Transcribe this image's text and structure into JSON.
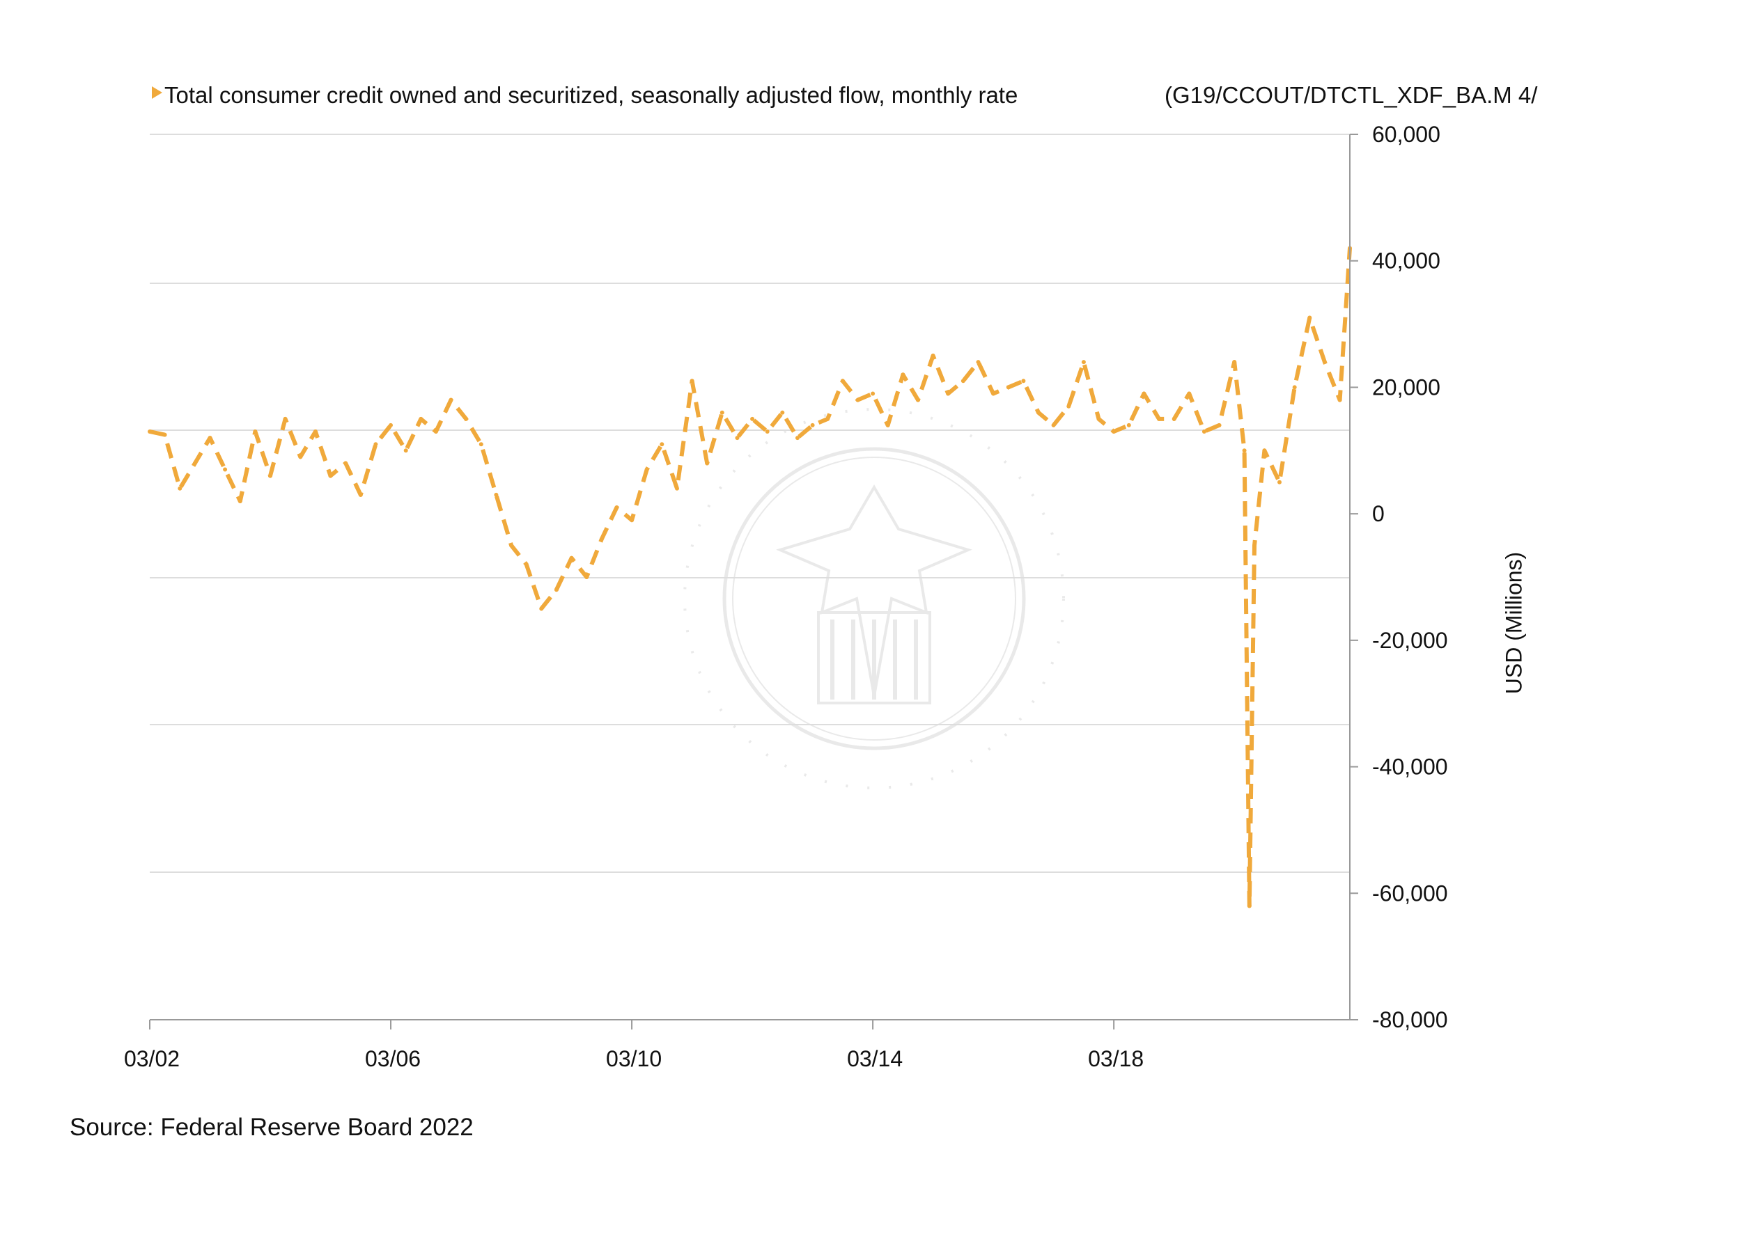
{
  "chart_data": {
    "type": "line",
    "legend": {
      "label": "Total consumer credit owned and securitized, seasonally adjusted flow, monthly rate",
      "marker_color": "#f0a93b",
      "placement": "top-left"
    },
    "series_code": "(G19/CCOUT/DTCTL_XDF_BA.M 4/",
    "ylabel": "USD (Millions)",
    "ylim": [
      -80000,
      60000
    ],
    "y_ticks": [
      "60,000",
      "40,000",
      "20,000",
      "0",
      "-20,000",
      "-40,000",
      "-60,000",
      "-80,000"
    ],
    "y_tick_values": [
      60000,
      40000,
      20000,
      0,
      -20000,
      -40000,
      -60000,
      -80000
    ],
    "x_ticks": [
      "03/02",
      "03/06",
      "03/10",
      "03/14",
      "03/18"
    ],
    "x_tick_values": [
      2002.0,
      2006.0,
      2010.0,
      2014.0,
      2018.0
    ],
    "xlim": [
      2002.0,
      2021.917
    ],
    "grid": true,
    "line_style": "dashed",
    "series": [
      {
        "color": "#f0a93b",
        "x": [
          2002.0,
          2002.25,
          2002.5,
          2002.75,
          2003.0,
          2003.25,
          2003.5,
          2003.75,
          2004.0,
          2004.25,
          2004.5,
          2004.75,
          2005.0,
          2005.25,
          2005.5,
          2005.75,
          2006.0,
          2006.25,
          2006.5,
          2006.75,
          2007.0,
          2007.25,
          2007.5,
          2007.75,
          2008.0,
          2008.25,
          2008.5,
          2008.75,
          2009.0,
          2009.25,
          2009.5,
          2009.75,
          2010.0,
          2010.25,
          2010.5,
          2010.75,
          2011.0,
          2011.25,
          2011.5,
          2011.75,
          2012.0,
          2012.25,
          2012.5,
          2012.75,
          2013.0,
          2013.25,
          2013.5,
          2013.75,
          2014.0,
          2014.25,
          2014.5,
          2014.75,
          2015.0,
          2015.25,
          2015.5,
          2015.75,
          2016.0,
          2016.25,
          2016.5,
          2016.75,
          2017.0,
          2017.25,
          2017.5,
          2017.75,
          2018.0,
          2018.25,
          2018.5,
          2018.75,
          2019.0,
          2019.25,
          2019.5,
          2019.75,
          2020.0,
          2020.167,
          2020.25,
          2020.333,
          2020.5,
          2020.75,
          2021.0,
          2021.25,
          2021.5,
          2021.75,
          2021.917
        ],
        "values": [
          13000,
          12500,
          4000,
          8000,
          12000,
          7000,
          2000,
          13000,
          6000,
          15000,
          9000,
          13000,
          6000,
          8000,
          3000,
          11000,
          14000,
          10000,
          15000,
          13000,
          18000,
          15000,
          11000,
          3000,
          -5000,
          -8000,
          -15000,
          -12000,
          -7000,
          -10000,
          -4000,
          1000,
          -1000,
          7000,
          11000,
          4000,
          21000,
          8000,
          16000,
          12000,
          15000,
          13000,
          16000,
          12000,
          14000,
          15000,
          21000,
          18000,
          19000,
          14000,
          22000,
          18000,
          25000,
          19000,
          21000,
          24000,
          19000,
          20000,
          21000,
          16000,
          14000,
          17000,
          24000,
          15000,
          13000,
          14000,
          19000,
          15000,
          15000,
          19000,
          13000,
          14000,
          24000,
          10000,
          -62000,
          -5000,
          10000,
          5000,
          20000,
          31000,
          24000,
          18000,
          42000
        ]
      }
    ],
    "source": "Source: Federal Reserve Board 2022",
    "watermark": "Board of Governors of the Federal Reserve System seal"
  }
}
